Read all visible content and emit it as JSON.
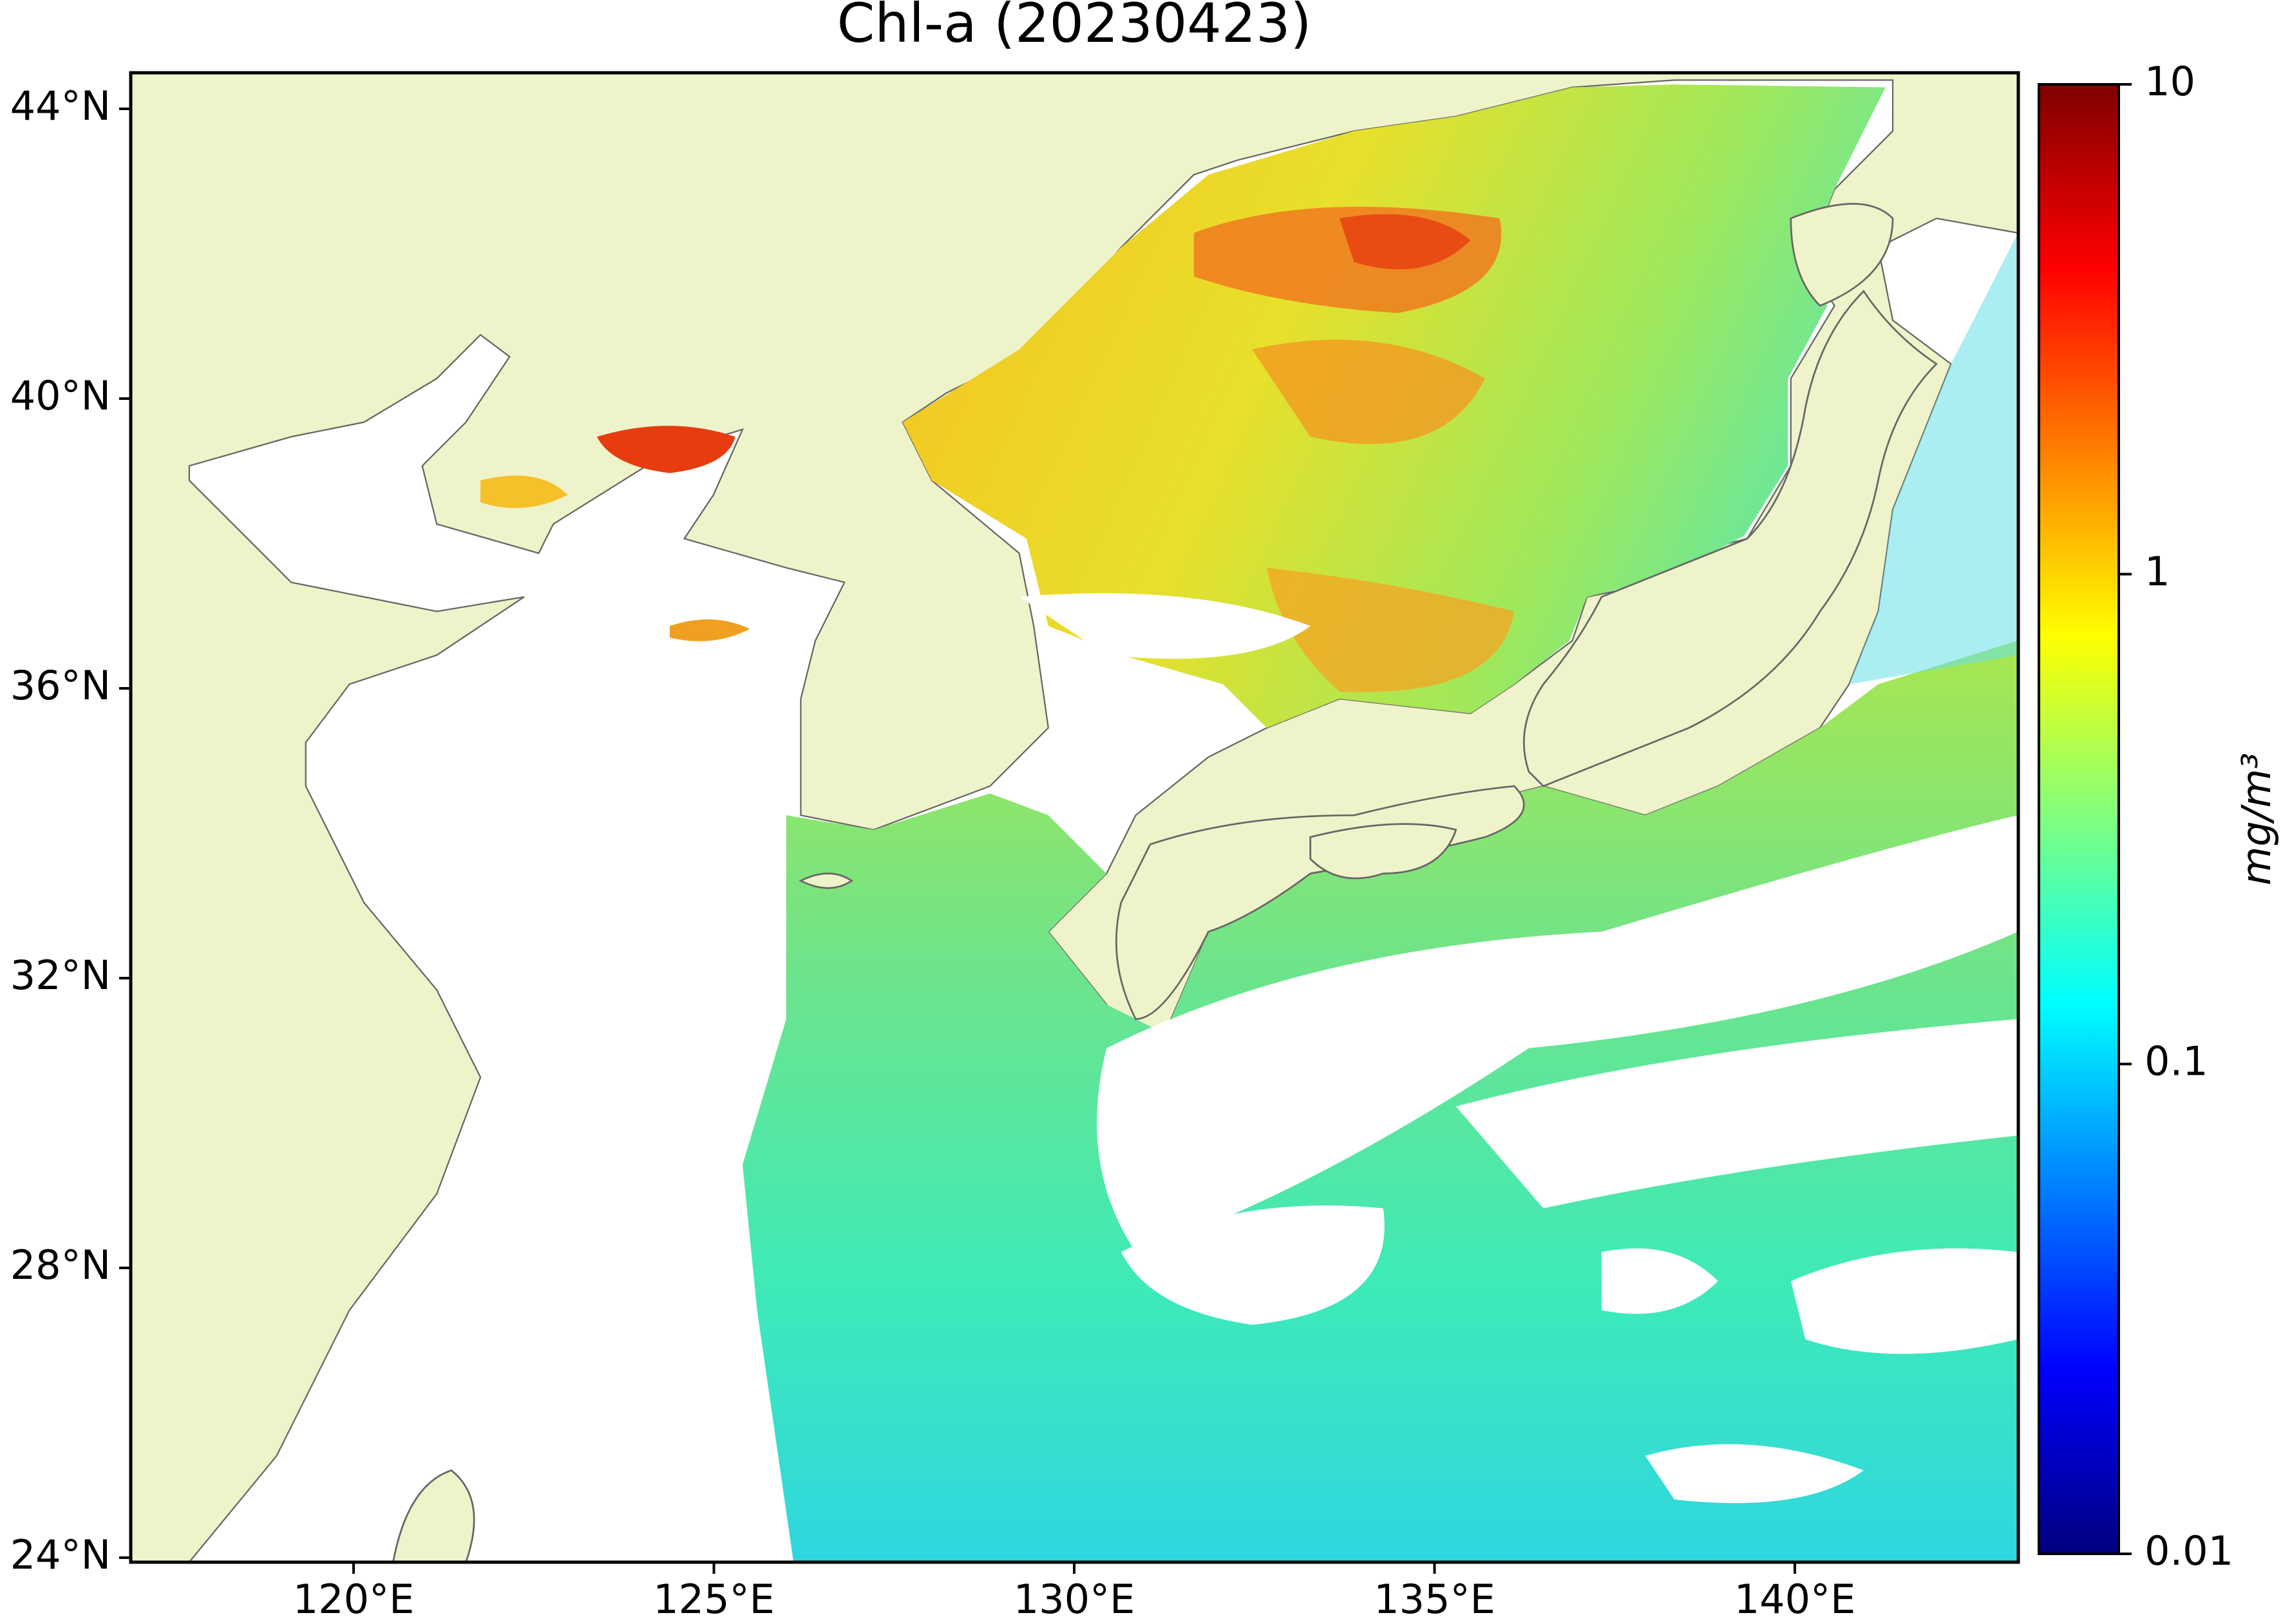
{
  "title": "Chl-a (20230423)",
  "map": {
    "lat_ticks": [
      {
        "value": 44,
        "label": "44°N"
      },
      {
        "value": 40,
        "label": "40°N"
      },
      {
        "value": 36,
        "label": "36°N"
      },
      {
        "value": 32,
        "label": "32°N"
      },
      {
        "value": 28,
        "label": "28°N"
      },
      {
        "value": 24,
        "label": "24°N"
      }
    ],
    "lon_ticks": [
      {
        "value": 120,
        "label": "120°E"
      },
      {
        "value": 125,
        "label": "125°E"
      },
      {
        "value": 130,
        "label": "130°E"
      },
      {
        "value": 135,
        "label": "135°E"
      },
      {
        "value": 140,
        "label": "140°E"
      }
    ]
  },
  "colorbar": {
    "label": "mg/m³",
    "scale": "log",
    "colormap": "jet",
    "ticks": [
      0.01,
      0.1,
      1,
      10
    ]
  }
}
